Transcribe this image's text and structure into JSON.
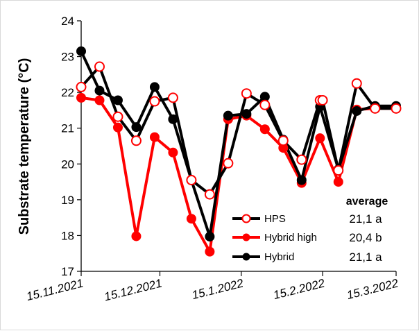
{
  "chart_data": {
    "type": "line",
    "ylabel": "Substrate temperature (°C)",
    "xlabel": "",
    "ylim": [
      17,
      24
    ],
    "yticks": [
      17,
      18,
      19,
      20,
      21,
      22,
      23,
      24
    ],
    "xlim": [
      "2021-11-15",
      "2022-3-15"
    ],
    "xticks": [
      {
        "date": "2021-11-15",
        "label": "15.11.2021"
      },
      {
        "date": "2021-12-15",
        "label": "15.12.2021"
      },
      {
        "date": "2022-1-15",
        "label": "15.1.2022"
      },
      {
        "date": "2022-2-15",
        "label": "15.2.2022"
      },
      {
        "date": "2022-3-15",
        "label": "15.3.2022"
      }
    ],
    "grid": false,
    "legend_placement": "bottom-right",
    "series": [
      {
        "name": "HPS",
        "line_color": "#000000",
        "marker": "open-circle",
        "marker_color": "#ff0000",
        "x": [
          "2021-11-15",
          "2021-11-22",
          "2021-11-29",
          "2021-12-6",
          "2021-12-13",
          "2021-12-20",
          "2021-12-27",
          "2022-1-3",
          "2022-1-10",
          "2022-1-17",
          "2022-1-24",
          "2022-1-31",
          "2022-2-7",
          "2022-2-14",
          "2022-2-15",
          "2022-2-21",
          "2022-2-28",
          "2022-3-7",
          "2022-3-15"
        ],
        "values": [
          22.15,
          22.72,
          21.32,
          20.65,
          21.75,
          21.85,
          19.55,
          19.15,
          20.02,
          21.97,
          21.65,
          20.65,
          20.12,
          21.78,
          21.78,
          19.82,
          22.25,
          21.55,
          21.55
        ]
      },
      {
        "name": "Hybrid high",
        "line_color": "#ff0000",
        "marker": "filled-circle",
        "marker_color": "#ff0000",
        "x": [
          "2021-11-15",
          "2021-11-22",
          "2021-11-29",
          "2021-12-6",
          "2021-12-13",
          "2021-12-20",
          "2021-12-27",
          "2022-1-3",
          "2022-1-10",
          "2022-1-17",
          "2022-1-24",
          "2022-1-31",
          "2022-2-7",
          "2022-2-14",
          "2022-2-21",
          "2022-2-28",
          "2022-3-7",
          "2022-3-15"
        ],
        "values": [
          21.85,
          21.78,
          21.02,
          17.98,
          20.75,
          20.32,
          18.47,
          17.55,
          21.25,
          21.35,
          20.97,
          20.45,
          19.47,
          20.72,
          19.5,
          21.52,
          21.55,
          21.55
        ]
      },
      {
        "name": "Hybrid",
        "line_color": "#000000",
        "marker": "filled-circle",
        "marker_color": "#000000",
        "x": [
          "2021-11-15",
          "2021-11-22",
          "2021-11-29",
          "2021-12-6",
          "2021-12-13",
          "2021-12-20",
          "2021-12-27",
          "2022-1-3",
          "2022-1-10",
          "2022-1-17",
          "2022-1-24",
          "2022-1-31",
          "2022-2-7",
          "2022-2-14",
          "2022-2-21",
          "2022-2-28",
          "2022-3-7",
          "2022-3-15"
        ],
        "values": [
          23.15,
          22.05,
          21.78,
          21.03,
          22.15,
          21.25,
          19.55,
          17.97,
          21.35,
          21.4,
          21.88,
          20.68,
          19.55,
          21.6,
          19.85,
          21.48,
          21.62,
          21.62
        ]
      }
    ],
    "legend": {
      "title": "average",
      "entries": [
        {
          "label": "HPS",
          "average": "21,1 a"
        },
        {
          "label": "Hybrid high",
          "average": "20,4 b"
        },
        {
          "label": "Hybrid",
          "average": "21,1 a"
        }
      ]
    }
  }
}
